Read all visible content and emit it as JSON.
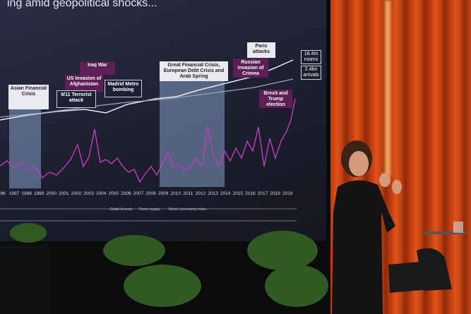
{
  "slide": {
    "title": "ing amid geopolitical shocks...",
    "annotations": [
      {
        "text": "Asian Financial Crisis",
        "style": "light"
      },
      {
        "text": "Iraq War",
        "style": "purple"
      },
      {
        "text": "US Invasion of Afghanistan",
        "style": "purple"
      },
      {
        "text": "9/11 Terrorist attack",
        "style": "dark"
      },
      {
        "text": "Madrid Metro bombing",
        "style": "dark"
      },
      {
        "text": "Great Financial Crisis, European Debt Crisis and Arab Spring",
        "style": "light"
      },
      {
        "text": "Paris attacks",
        "style": "light"
      },
      {
        "text": "Russian Invasion of Crimea",
        "style": "purple"
      },
      {
        "text": "Brexit and Trump election",
        "style": "purple"
      }
    ],
    "callouts": [
      "18.4m rooms",
      "2.4bn arrivals"
    ],
    "years": [
      "96",
      "1997",
      "1998",
      "1999",
      "2000",
      "2001",
      "2002",
      "2003",
      "2004",
      "2005",
      "2006",
      "2007",
      "2008",
      "2009",
      "2010",
      "2011",
      "2012",
      "2013",
      "2014",
      "2015",
      "2016",
      "2017",
      "2018",
      "2019"
    ],
    "legend": [
      "Global Arrivals",
      "Room supply",
      "World Uncertainty Index"
    ]
  }
}
